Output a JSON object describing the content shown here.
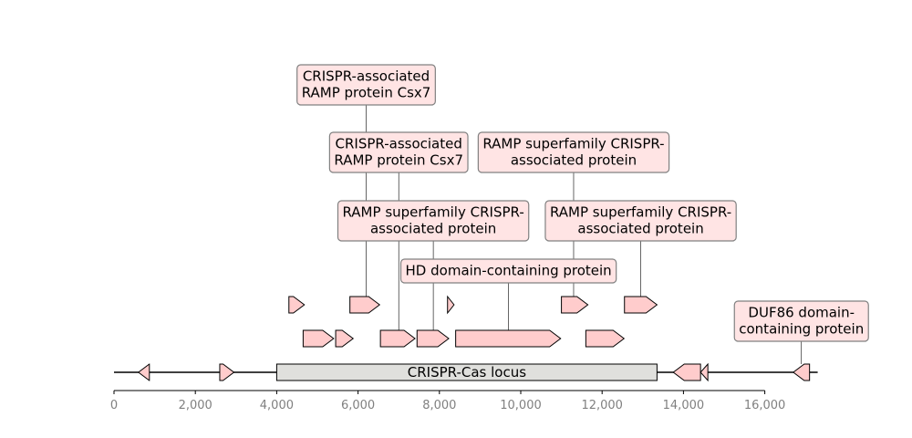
{
  "chart_data": {
    "type": "gene-map",
    "xlim": [
      0,
      17300
    ],
    "x_ticks": [
      {
        "value": 0,
        "label": "0"
      },
      {
        "value": 2000,
        "label": "2,000"
      },
      {
        "value": 4000,
        "label": "4,000"
      },
      {
        "value": 6000,
        "label": "6,000"
      },
      {
        "value": 8000,
        "label": "8,000"
      },
      {
        "value": 10000,
        "label": "10,000"
      },
      {
        "value": 12000,
        "label": "12,000"
      },
      {
        "value": 14000,
        "label": "14,000"
      },
      {
        "value": 16000,
        "label": "16,000"
      }
    ],
    "colors": {
      "gene_fill": "#ffcccc",
      "locus_fill": "#e0e0dd",
      "label_fill": "#ffe4e4",
      "label_border": "#808080",
      "tick_text": "#808080"
    },
    "locus": {
      "start": 4000,
      "end": 13350,
      "label": "CRISPR-Cas locus"
    },
    "genes": [
      {
        "start": 600,
        "end": 870,
        "strand": -1,
        "level": 0
      },
      {
        "start": 2600,
        "end": 2950,
        "strand": 1,
        "level": 0
      },
      {
        "start": 13750,
        "end": 14420,
        "strand": -1,
        "level": 0
      },
      {
        "start": 14420,
        "end": 14600,
        "strand": -1,
        "level": 0
      },
      {
        "start": 16700,
        "end": 17100,
        "strand": -1,
        "level": 0
      },
      {
        "start": 4650,
        "end": 5400,
        "strand": 1,
        "level": 1
      },
      {
        "start": 5450,
        "end": 5880,
        "strand": 1,
        "level": 1
      },
      {
        "start": 6550,
        "end": 7400,
        "strand": 1,
        "level": 1
      },
      {
        "start": 7450,
        "end": 8230,
        "strand": 1,
        "level": 1
      },
      {
        "start": 8400,
        "end": 10980,
        "strand": 1,
        "level": 1
      },
      {
        "start": 11600,
        "end": 12540,
        "strand": 1,
        "level": 1
      },
      {
        "start": 4300,
        "end": 4680,
        "strand": 1,
        "level": 2
      },
      {
        "start": 5800,
        "end": 6530,
        "strand": 1,
        "level": 2
      },
      {
        "start": 8200,
        "end": 8360,
        "strand": 1,
        "level": 2
      },
      {
        "start": 11000,
        "end": 11650,
        "strand": 1,
        "level": 2
      },
      {
        "start": 12550,
        "end": 13350,
        "strand": 1,
        "level": 2
      }
    ],
    "annotations": [
      {
        "lines": [
          "CRISPR-associated",
          "RAMP protein Csx7"
        ],
        "anchor": 6200,
        "label_x": 6200,
        "gene_level": 2,
        "row": 4
      },
      {
        "lines": [
          "CRISPR-associated",
          "RAMP protein Csx7"
        ],
        "anchor": 7000,
        "label_x": 7000,
        "gene_level": 1,
        "row": 3
      },
      {
        "lines": [
          "RAMP superfamily CRISPR-",
          "associated protein"
        ],
        "anchor": 11300,
        "label_x": 11300,
        "gene_level": 2,
        "row": 3
      },
      {
        "lines": [
          "RAMP superfamily CRISPR-",
          "associated protein"
        ],
        "anchor": 7850,
        "label_x": 7850,
        "gene_level": 1,
        "row": 2
      },
      {
        "lines": [
          "RAMP superfamily CRISPR-",
          "associated protein"
        ],
        "anchor": 12950,
        "label_x": 12950,
        "gene_level": 2,
        "row": 2
      },
      {
        "lines": [
          "HD domain-containing protein"
        ],
        "anchor": 9700,
        "label_x": 9700,
        "gene_level": 1,
        "row": 1
      },
      {
        "lines": [
          "DUF86 domain-",
          "containing protein"
        ],
        "anchor": 16900,
        "label_x": 16900,
        "gene_level": 0,
        "row": 0.4
      }
    ]
  }
}
